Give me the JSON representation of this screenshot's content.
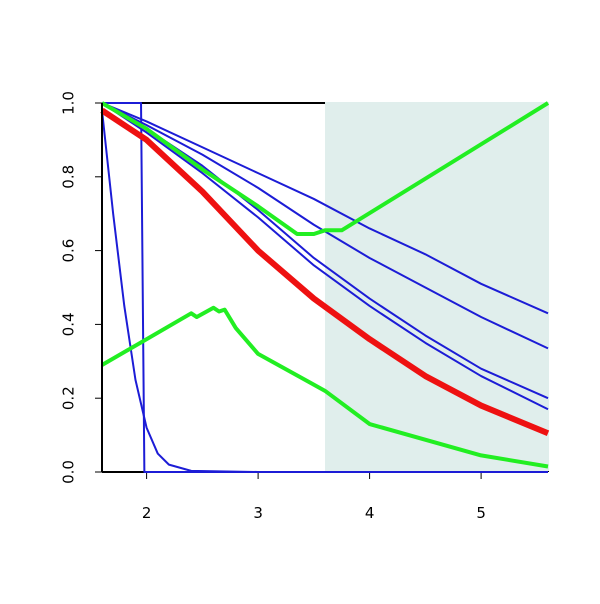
{
  "chart_data": {
    "type": "line",
    "xlim": [
      1.6,
      5.6
    ],
    "ylim": [
      0,
      1
    ],
    "xticks": [
      2,
      3,
      4,
      5
    ],
    "yticks": [
      {
        "value": 0,
        "label": "0.0"
      },
      0.2,
      0.4,
      0.6,
      0.8,
      {
        "value": 1,
        "label": "1.0"
      }
    ],
    "highlight": {
      "xmin": 3.6,
      "xmax": 5.6,
      "color": "#e0eeec"
    },
    "series": [
      {
        "color": "#1c1cd6",
        "width": 2,
        "x": [
          1.6,
          1.95,
          1.98,
          5.6
        ],
        "values": [
          1,
          1,
          0,
          0
        ]
      },
      {
        "color": "#1c1cd6",
        "width": 2,
        "x": [
          1.6,
          1.7,
          1.8,
          1.9,
          2.0,
          2.1,
          2.2,
          2.4,
          3.0,
          5.6
        ],
        "values": [
          0.98,
          0.7,
          0.45,
          0.25,
          0.12,
          0.05,
          0.02,
          0.003,
          0,
          0
        ]
      },
      {
        "color": "#1c1cd6",
        "width": 2,
        "x": [
          1.6,
          2.0,
          2.5,
          3.0,
          3.5,
          4.0,
          4.5,
          5.0,
          5.6
        ],
        "values": [
          1,
          0.95,
          0.88,
          0.81,
          0.74,
          0.66,
          0.59,
          0.51,
          0.43
        ]
      },
      {
        "color": "#1c1cd6",
        "width": 2,
        "x": [
          1.6,
          2.0,
          2.5,
          3.0,
          3.5,
          4.0,
          4.5,
          5.0,
          5.6
        ],
        "values": [
          1,
          0.94,
          0.86,
          0.77,
          0.67,
          0.58,
          0.5,
          0.42,
          0.335
        ]
      },
      {
        "color": "#1c1cd6",
        "width": 2,
        "x": [
          1.6,
          2.0,
          2.5,
          3.0,
          3.5,
          4.0,
          4.5,
          5.0,
          5.6
        ],
        "values": [
          1,
          0.93,
          0.83,
          0.71,
          0.58,
          0.47,
          0.37,
          0.28,
          0.2
        ]
      },
      {
        "color": "#1c1cd6",
        "width": 2,
        "x": [
          1.6,
          2.0,
          2.5,
          3.0,
          3.5,
          4.0,
          4.5,
          5.0,
          5.6
        ],
        "values": [
          1,
          0.92,
          0.81,
          0.69,
          0.56,
          0.45,
          0.35,
          0.26,
          0.17
        ]
      },
      {
        "color": "#ee1111",
        "width": 6,
        "x": [
          1.6,
          2.0,
          2.5,
          3.0,
          3.5,
          4.0,
          4.5,
          5.0,
          5.6
        ],
        "values": [
          0.98,
          0.9,
          0.76,
          0.6,
          0.47,
          0.36,
          0.26,
          0.18,
          0.105
        ]
      },
      {
        "color": "#22ee22",
        "width": 4,
        "x": [
          1.6,
          2.0,
          2.5,
          3.0,
          3.35,
          3.5,
          3.6,
          3.75,
          5.6
        ],
        "values": [
          1,
          0.93,
          0.82,
          0.72,
          0.645,
          0.645,
          0.655,
          0.655,
          1
        ]
      },
      {
        "color": "#22ee22",
        "width": 4,
        "x": [
          1.6,
          2.4,
          2.45,
          2.6,
          2.65,
          2.7,
          2.8,
          3.0,
          3.6,
          4.0,
          5.0,
          5.6
        ],
        "values": [
          0.29,
          0.43,
          0.42,
          0.445,
          0.435,
          0.44,
          0.39,
          0.32,
          0.22,
          0.13,
          0.045,
          0.015
        ]
      }
    ]
  }
}
